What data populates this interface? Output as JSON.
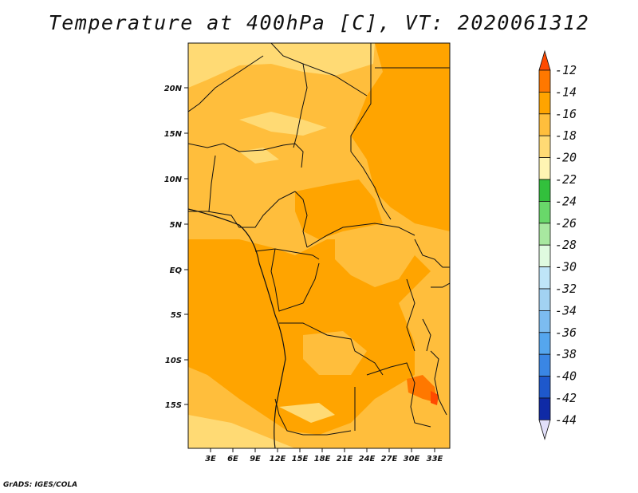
{
  "title": "Temperature at 400hPa [C], VT: 2020061312",
  "credit": "GrADS: IGES/COLA",
  "map": {
    "lat_labels": [
      "20N",
      "15N",
      "10N",
      "5N",
      "EQ",
      "5S",
      "10S",
      "15S"
    ],
    "lon_labels": [
      "3E",
      "6E",
      "9E",
      "12E",
      "15E",
      "18E",
      "21E",
      "24E",
      "27E",
      "30E",
      "33E"
    ]
  },
  "colorbar": {
    "labels": [
      "-12",
      "-14",
      "-16",
      "-18",
      "-20",
      "-22",
      "-24",
      "-26",
      "-28",
      "-30",
      "-32",
      "-34",
      "-36",
      "-38",
      "-40",
      "-42",
      "-44"
    ],
    "colors": [
      "#ff4a00",
      "#ff7800",
      "#ffa400",
      "#ffbe3c",
      "#ffda74",
      "#fff5b3",
      "#32c03c",
      "#69d86a",
      "#a8e8a0",
      "#e0fbe0",
      "#bfe5f8",
      "#a2d2f2",
      "#7cbcf0",
      "#55a6ee",
      "#3a86e4",
      "#1e58cc",
      "#0f2aa6",
      "#0a0a78",
      "#e2e0fa"
    ]
  }
}
